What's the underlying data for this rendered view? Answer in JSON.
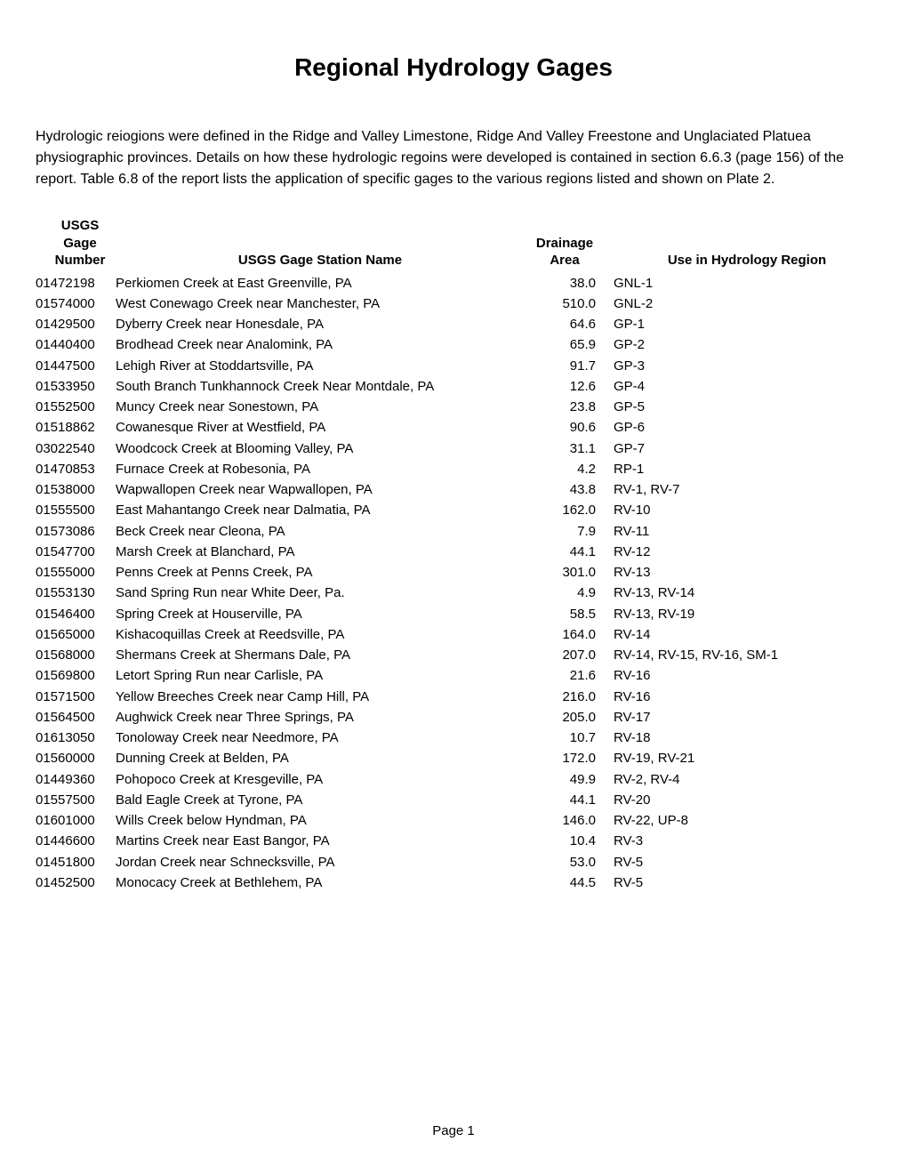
{
  "title": "Regional Hydrology Gages",
  "intro": "Hydrologic reiogions were defined in the Ridge and Valley Limestone, Ridge And Valley Freestone and Unglaciated Platuea physiographic provinces. Details on how these hydrologic regoins were developed is contained in section 6.6.3  (page 156) of the report. Table 6.8 of the report lists the application of specific gages to the various regions listed and shown on Plate 2.",
  "headers": {
    "gage_l1": "USGS",
    "gage_l2": "Gage",
    "gage_l3": "Number",
    "name": "USGS Gage Station Name",
    "area_l1": "Drainage",
    "area_l2": "Area",
    "region": "Use in Hydrology Region"
  },
  "rows": [
    {
      "gage": "01472198",
      "name": "Perkiomen Creek at East Greenville, PA",
      "area": "38.0",
      "region": "GNL-1"
    },
    {
      "gage": "01574000",
      "name": "West Conewago Creek near Manchester, PA",
      "area": "510.0",
      "region": "GNL-2"
    },
    {
      "gage": "01429500",
      "name": "Dyberry Creek near Honesdale, PA",
      "area": "64.6",
      "region": "GP-1"
    },
    {
      "gage": "01440400",
      "name": "Brodhead Creek near Analomink, PA",
      "area": "65.9",
      "region": "GP-2"
    },
    {
      "gage": "01447500",
      "name": "Lehigh River at Stoddartsville, PA",
      "area": "91.7",
      "region": "GP-3"
    },
    {
      "gage": "01533950",
      "name": "South Branch Tunkhannock Creek Near Montdale, PA",
      "area": "12.6",
      "region": "GP-4"
    },
    {
      "gage": "01552500",
      "name": "Muncy Creek near Sonestown, PA",
      "area": "23.8",
      "region": "GP-5"
    },
    {
      "gage": "01518862",
      "name": "Cowanesque River at Westfield, PA",
      "area": "90.6",
      "region": "GP-6"
    },
    {
      "gage": "03022540",
      "name": "Woodcock Creek at Blooming Valley, PA",
      "area": "31.1",
      "region": "GP-7"
    },
    {
      "gage": "01470853",
      "name": "Furnace Creek at Robesonia, PA",
      "area": "4.2",
      "region": "RP-1"
    },
    {
      "gage": "01538000",
      "name": "Wapwallopen Creek near Wapwallopen, PA",
      "area": "43.8",
      "region": "RV-1, RV-7"
    },
    {
      "gage": "01555500",
      "name": "East Mahantango Creek near Dalmatia, PA",
      "area": "162.0",
      "region": "RV-10"
    },
    {
      "gage": "01573086",
      "name": "Beck Creek near Cleona, PA",
      "area": "7.9",
      "region": "RV-11"
    },
    {
      "gage": "01547700",
      "name": "Marsh Creek at Blanchard, PA",
      "area": "44.1",
      "region": "RV-12"
    },
    {
      "gage": "01555000",
      "name": "Penns Creek at Penns Creek, PA",
      "area": "301.0",
      "region": "RV-13"
    },
    {
      "gage": "01553130",
      "name": "Sand Spring Run near White Deer, Pa.",
      "area": "4.9",
      "region": "RV-13, RV-14"
    },
    {
      "gage": "01546400",
      "name": "Spring Creek at Houserville, PA",
      "area": "58.5",
      "region": "RV-13, RV-19"
    },
    {
      "gage": "01565000",
      "name": "Kishacoquillas Creek at Reedsville, PA",
      "area": "164.0",
      "region": "RV-14"
    },
    {
      "gage": "01568000",
      "name": "Shermans Creek at Shermans Dale, PA",
      "area": "207.0",
      "region": "RV-14, RV-15, RV-16, SM-1"
    },
    {
      "gage": "01569800",
      "name": "Letort Spring Run near Carlisle, PA",
      "area": "21.6",
      "region": "RV-16"
    },
    {
      "gage": "01571500",
      "name": "Yellow Breeches Creek near Camp Hill, PA",
      "area": "216.0",
      "region": "RV-16"
    },
    {
      "gage": "01564500",
      "name": "Aughwick Creek near Three Springs, PA",
      "area": "205.0",
      "region": "RV-17"
    },
    {
      "gage": "01613050",
      "name": "Tonoloway Creek near Needmore, PA",
      "area": "10.7",
      "region": "RV-18"
    },
    {
      "gage": "01560000",
      "name": "Dunning Creek at Belden, PA",
      "area": "172.0",
      "region": "RV-19, RV-21"
    },
    {
      "gage": "01449360",
      "name": "Pohopoco Creek at Kresgeville, PA",
      "area": "49.9",
      "region": "RV-2, RV-4"
    },
    {
      "gage": "01557500",
      "name": "Bald Eagle Creek at Tyrone, PA",
      "area": "44.1",
      "region": "RV-20"
    },
    {
      "gage": "01601000",
      "name": "Wills Creek below Hyndman, PA",
      "area": "146.0",
      "region": "RV-22, UP-8"
    },
    {
      "gage": "01446600",
      "name": "Martins Creek near East Bangor, PA",
      "area": "10.4",
      "region": "RV-3"
    },
    {
      "gage": "01451800",
      "name": "Jordan Creek near Schnecksville, PA",
      "area": "53.0",
      "region": "RV-5"
    },
    {
      "gage": "01452500",
      "name": "Monocacy Creek at Bethlehem, PA",
      "area": "44.5",
      "region": "RV-5"
    }
  ],
  "footer": "Page 1"
}
